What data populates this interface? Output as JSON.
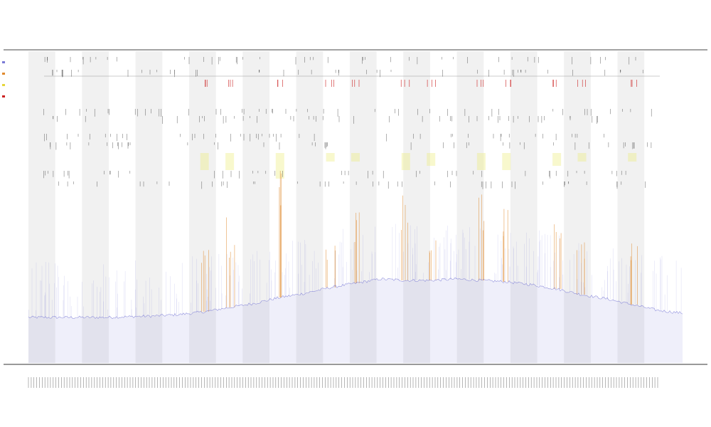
{
  "chart_data": {
    "type": "area",
    "title_lines": [
      "",
      "",
      ""
    ],
    "xlabel": "",
    "ylabel": "",
    "legend_position": "top-left",
    "bands": 12,
    "background_stripes": true,
    "series": [
      {
        "name": "",
        "color": "#7b7bd6",
        "kind": "coverage-area",
        "values": [
          0.03,
          0.03,
          0.03,
          0.03,
          0.035,
          0.04,
          0.05,
          0.07,
          0.1,
          0.13,
          0.17,
          0.2,
          0.24,
          0.27,
          0.3,
          0.29,
          0.29,
          0.3,
          0.29,
          0.28,
          0.26,
          0.23,
          0.19,
          0.16,
          0.12,
          0.08,
          0.06
        ]
      },
      {
        "name": "",
        "color": "#e08a2e",
        "kind": "signal-spikes",
        "values": [
          0.0,
          0.0,
          0.0,
          0.0,
          0.0,
          0.0,
          0.0,
          0.4,
          0.5,
          0.0,
          0.75,
          0.0,
          0.3,
          0.4,
          0.0,
          0.5,
          0.3,
          0.0,
          0.5,
          0.4,
          0.0,
          0.4,
          0.3,
          0.0,
          0.4,
          0.0,
          0.0
        ]
      },
      {
        "name": "",
        "color": "#e6d63a",
        "kind": "highlight",
        "values": [
          0,
          0,
          0,
          0,
          0,
          0,
          0,
          0.2,
          0.2,
          0,
          0.3,
          0,
          0.1,
          0.1,
          0,
          0.2,
          0.15,
          0,
          0.2,
          0.2,
          0,
          0.15,
          0.1,
          0,
          0.1,
          0,
          0
        ]
      },
      {
        "name": "",
        "color": "#cc2222",
        "kind": "marks",
        "values": [
          0,
          0,
          0,
          0,
          0,
          0,
          0,
          1,
          1,
          0,
          1,
          0,
          1,
          1,
          0,
          1,
          1,
          0,
          1,
          1,
          0,
          1,
          1,
          0,
          1,
          0,
          0
        ]
      }
    ]
  },
  "colors": {
    "stripe": "#f1f1f1",
    "axis": "#333333",
    "coverage": "#7b7bd6",
    "spike": "#e08a2e",
    "highlight": "#eaea70",
    "mark": "#cc2222",
    "tick": "#222222"
  }
}
